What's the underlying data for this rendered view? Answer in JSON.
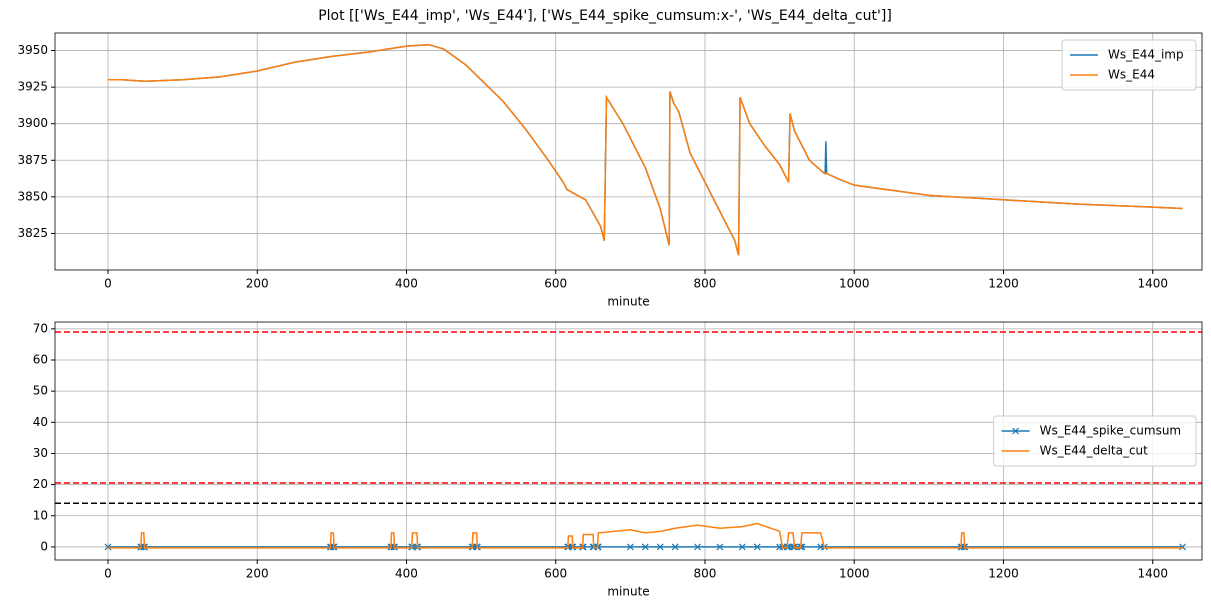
{
  "title": "Plot [['Ws_E44_imp', 'Ws_E44'], ['Ws_E44_spike_cumsum:x-', 'Ws_E44_delta_cut']]",
  "chart_data": [
    {
      "type": "line",
      "xlabel": "minute",
      "x": [
        0,
        20,
        50,
        100,
        150,
        200,
        250,
        300,
        350,
        400,
        430,
        450,
        480,
        500,
        530,
        560,
        590,
        610,
        615,
        640,
        660,
        665,
        668,
        690,
        720,
        740,
        752,
        753,
        758,
        765,
        780,
        800,
        820,
        840,
        845,
        847,
        860,
        880,
        900,
        912,
        914,
        920,
        940,
        960,
        961,
        962,
        963,
        980,
        1000,
        1100,
        1200,
        1300,
        1400,
        1440
      ],
      "series": [
        {
          "name": "Ws_E44_imp",
          "color": "#1f77b4",
          "values": [
            3930,
            3930,
            3929,
            3930,
            3932,
            3936,
            3942,
            3946,
            3949,
            3953,
            3954,
            3951,
            3940,
            3930,
            3915,
            3896,
            3875,
            3860,
            3855,
            3848,
            3830,
            3820,
            3918,
            3900,
            3870,
            3842,
            3817,
            3922,
            3914,
            3908,
            3880,
            3860,
            3840,
            3820,
            3810,
            3918,
            3900,
            3885,
            3872,
            3860,
            3907,
            3895,
            3875,
            3866,
            3866,
            3888,
            3866,
            3862,
            3858,
            3851,
            3848,
            3845,
            3843,
            3842
          ]
        },
        {
          "name": "Ws_E44",
          "color": "#ff7f0e",
          "values": [
            3930,
            3930,
            3929,
            3930,
            3932,
            3936,
            3942,
            3946,
            3949,
            3953,
            3954,
            3951,
            3940,
            3930,
            3915,
            3896,
            3875,
            3860,
            3855,
            3848,
            3830,
            3820,
            3918,
            3900,
            3870,
            3842,
            3817,
            3922,
            3914,
            3908,
            3880,
            3860,
            3840,
            3820,
            3810,
            3918,
            3900,
            3885,
            3872,
            3860,
            3907,
            3895,
            3875,
            3866,
            3866,
            3866,
            3866,
            3862,
            3858,
            3851,
            3848,
            3845,
            3843,
            3842
          ]
        }
      ],
      "xlim": [
        -71,
        1466
      ],
      "xticks": [
        0,
        200,
        400,
        600,
        800,
        1000,
        1200,
        1400
      ],
      "ylim": [
        3800,
        3962
      ],
      "yticks": [
        3825,
        3850,
        3875,
        3900,
        3925,
        3950
      ],
      "grid": true,
      "legend": "upper right"
    },
    {
      "type": "line",
      "xlabel": "minute",
      "x": [
        0,
        44,
        45,
        48,
        49,
        298,
        299,
        302,
        303,
        379,
        380,
        383,
        384,
        407,
        408,
        414,
        415,
        488,
        489,
        494,
        495,
        616,
        617,
        622,
        623,
        636,
        637,
        650,
        651,
        656,
        657,
        700,
        720,
        740,
        760,
        790,
        820,
        850,
        870,
        900,
        904,
        910,
        912,
        918,
        920,
        928,
        930,
        955,
        960,
        1143,
        1144,
        1147,
        1148,
        1440
      ],
      "series": [
        {
          "name": "Ws_E44_spike_cumsum",
          "color": "#1f77b4",
          "marker": "x",
          "values": [
            0,
            0,
            0,
            0,
            0,
            0,
            0,
            0,
            0,
            0,
            0,
            0,
            0,
            0,
            0,
            0,
            0,
            0,
            0,
            0,
            0,
            0,
            0,
            0,
            0,
            0,
            0,
            0,
            0,
            0,
            0,
            0,
            0,
            0,
            0,
            0,
            0,
            0,
            0,
            0,
            0,
            0,
            0,
            0,
            0,
            0,
            0,
            0,
            0,
            0,
            0,
            0,
            0,
            0
          ]
        },
        {
          "name": "Ws_E44_delta_cut",
          "color": "#ff7f0e",
          "values": [
            -0.3,
            -0.3,
            4.5,
            4.5,
            -0.3,
            -0.3,
            4.5,
            4.5,
            -0.3,
            -0.3,
            4.5,
            4.5,
            -0.3,
            -0.3,
            4.5,
            4.5,
            -0.3,
            -0.3,
            4.5,
            4.5,
            -0.3,
            -0.3,
            3.5,
            3.5,
            -0.3,
            -0.3,
            4,
            4,
            -0.3,
            -0.3,
            4.5,
            5.5,
            4.5,
            5,
            6,
            7,
            6,
            6.5,
            7.5,
            5,
            -0.3,
            -0.3,
            4.5,
            4.5,
            -0.3,
            -0.3,
            4.5,
            4.5,
            -0.3,
            -0.3,
            4.5,
            4.5,
            -0.3,
            -0.3
          ]
        }
      ],
      "hlines": [
        {
          "value": 69,
          "color": "red"
        },
        {
          "value": 20.5,
          "color": "red"
        },
        {
          "value": 14,
          "color": "black"
        }
      ],
      "xlim": [
        -71,
        1466
      ],
      "xticks": [
        0,
        200,
        400,
        600,
        800,
        1000,
        1200,
        1400
      ],
      "ylim": [
        -4.2,
        72.2
      ],
      "yticks": [
        0,
        10,
        20,
        30,
        40,
        50,
        60,
        70
      ],
      "grid": true,
      "legend": "center right"
    }
  ]
}
